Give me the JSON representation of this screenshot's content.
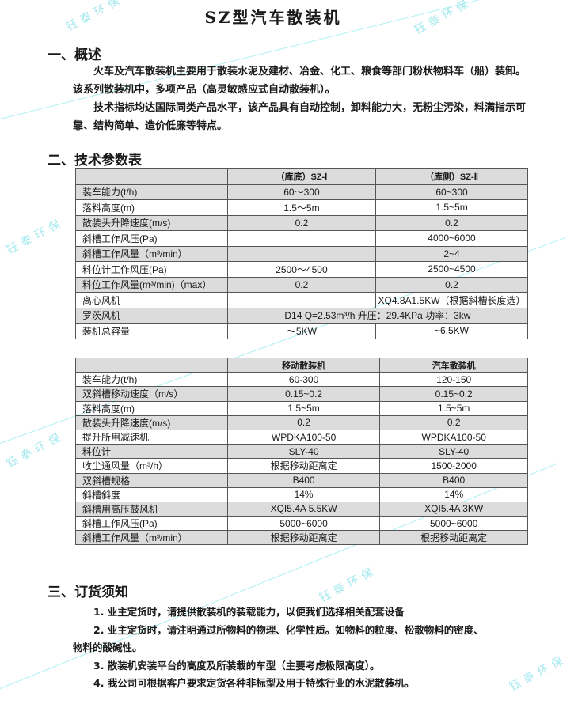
{
  "title": "SZ型汽车散装机",
  "watermark": "钰泰环保",
  "sections": {
    "overview": {
      "heading": "一、概述",
      "paragraphs": [
        "火车及汽车散装机主要用于散装水泥及建材、冶金、化工、粮食等部门粉状物料车（船）装卸。该系列散装机中，多项产品（高灵敏感应式自动散装机）。",
        "技术指标均达国际同类产品水平，该产品具有自动控制，卸料能力大，无粉尘污染，料满指示可靠、结构简单、造价低廉等特点。"
      ]
    },
    "params": {
      "heading": "二、技术参数表"
    },
    "ordering": {
      "heading": "三、订货须知",
      "items": [
        "1.  业主定货时，请提供散装机的装载能力，以便我们选择相关配套设备",
        "2.  业主定货时，请注明通过所物料的物理、化学性质。如物料的粒度、松散物料的密度、",
        "物料的酸碱性。",
        "3.  散装机安装平台的高度及所装载的车型（主要考虑极限高度）。",
        "4.  我公司可根据客户要求定货各种非标型及用于特殊行业的水泥散装机。"
      ]
    }
  },
  "table1": {
    "headers": [
      "",
      "（库底）SZ-Ⅰ",
      "（库侧）SZ-Ⅱ"
    ],
    "rows": [
      [
        "装车能力(t/h)",
        "60～300",
        "60~300"
      ],
      [
        "落料高度(m)",
        "1.5～5m",
        "1.5~5m"
      ],
      [
        "散装头升降速度(m/s)",
        "0.2",
        "0.2"
      ],
      [
        "斜槽工作风压(Pa)",
        "",
        "4000~6000"
      ],
      [
        "斜槽工作风量（m³/min）",
        "",
        "2~4"
      ],
      [
        "料位计工作风压(Pa)",
        "2500～4500",
        "2500~4500"
      ],
      [
        "料位工作风量(m³/min)（max）",
        "0.2",
        "0.2"
      ],
      [
        "离心风机",
        "",
        "XQ4.8A1.5KW（根据斜槽长度选）"
      ],
      [
        "罗茨风机",
        "D14  Q=2.53m³/h   升压：29.4KPa   功率：3kw"
      ],
      [
        "装机总容量",
        "～5KW",
        "~6.5KW"
      ]
    ]
  },
  "table2": {
    "headers": [
      "",
      "移动散装机",
      "汽车散装机"
    ],
    "rows": [
      [
        "装车能力(t/h)",
        "60-300",
        "120-150"
      ],
      [
        "双斜槽移动速度（m/s）",
        "0.15~0.2",
        "0.15~0.2"
      ],
      [
        "落料高度(m)",
        "1.5~5m",
        "1.5~5m"
      ],
      [
        "散装头升降速度(m/s)",
        "0.2",
        "0.2"
      ],
      [
        "提升所用减速机",
        "WPDKA100-50",
        "WPDKA100-50"
      ],
      [
        "料位计",
        "SLY-40",
        "SLY-40"
      ],
      [
        "收尘通风量（m³/h）",
        "根据移动距离定",
        "1500-2000"
      ],
      [
        "双斜槽规格",
        "B400",
        "B400"
      ],
      [
        "斜槽斜度",
        "14%",
        "14%"
      ],
      [
        "斜槽用高压鼓风机",
        "XQI5.4A  5.5KW",
        "XQI5.4A  3KW"
      ],
      [
        "斜槽工作风压(Pa)",
        "5000~6000",
        "5000~6000"
      ],
      [
        "斜槽工作风量（m³/min）",
        "根据移动距离定",
        "根据移动距离定"
      ]
    ]
  },
  "colors": {
    "row_shade": "#dcdcdc",
    "watermark": "#8ee3ea",
    "text": "#1a1a1a"
  }
}
